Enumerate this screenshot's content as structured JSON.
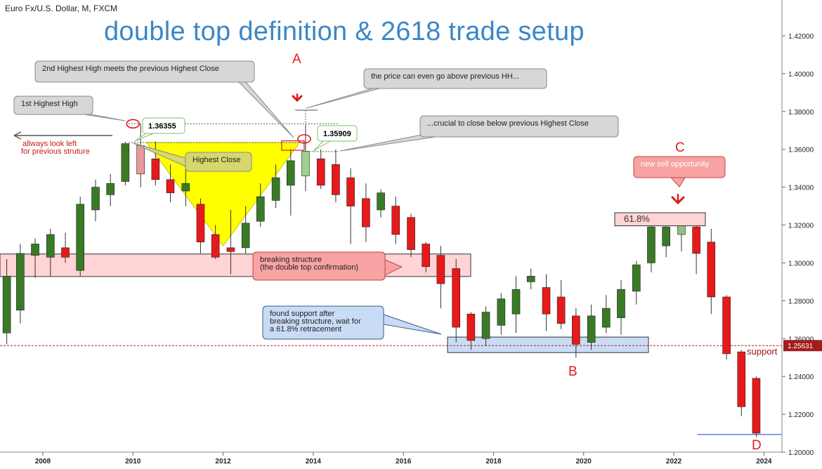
{
  "header": {
    "symbol": "Euro Fx/U.S. Dollar, M, FXCM",
    "title": "double top definition & 2618 trade setup"
  },
  "colors": {
    "bull": "#3a7a27",
    "bear": "#e8191a",
    "wick": "#333333",
    "title": "#3b87c8",
    "highlight_yellow": "#ffff00",
    "zone_pink": "#ffd4d4",
    "zone_blue": "#c9dcf5",
    "letter_red": "#e8191a",
    "support_line": "#b02020",
    "d_line": "#1c3fd6"
  },
  "chart_data": {
    "type": "candlestick",
    "title": "double top definition & 2618 trade setup",
    "symbol": "Euro Fx/U.S. Dollar, M, FXCM",
    "ylim": [
      1.2,
      1.43
    ],
    "xlim": [
      2007.05,
      2024.4
    ],
    "y_ticks": [
      "1.20000",
      "1.22000",
      "1.24000",
      "1.26000",
      "1.28000",
      "1.30000",
      "1.32000",
      "1.34000",
      "1.36000",
      "1.38000",
      "1.40000",
      "1.42000"
    ],
    "x_ticks": [
      "2008",
      "2010",
      "2012",
      "2014",
      "2016",
      "2018",
      "2020",
      "2022",
      "2024"
    ],
    "candles": [
      {
        "t": 2007.2,
        "o": 1.263,
        "h": 1.302,
        "l": 1.257,
        "c": 1.293
      },
      {
        "t": 2007.5,
        "o": 1.275,
        "h": 1.31,
        "l": 1.268,
        "c": 1.305
      },
      {
        "t": 2007.83,
        "o": 1.304,
        "h": 1.313,
        "l": 1.292,
        "c": 1.31
      },
      {
        "t": 2008.17,
        "o": 1.303,
        "h": 1.318,
        "l": 1.293,
        "c": 1.315
      },
      {
        "t": 2008.5,
        "o": 1.308,
        "h": 1.316,
        "l": 1.3,
        "c": 1.303
      },
      {
        "t": 2008.83,
        "o": 1.296,
        "h": 1.335,
        "l": 1.293,
        "c": 1.331
      },
      {
        "t": 2009.17,
        "o": 1.328,
        "h": 1.344,
        "l": 1.322,
        "c": 1.34
      },
      {
        "t": 2009.5,
        "o": 1.336,
        "h": 1.347,
        "l": 1.33,
        "c": 1.342
      },
      {
        "t": 2009.83,
        "o": 1.343,
        "h": 1.364,
        "l": 1.341,
        "c": 1.363
      },
      {
        "t": 2010.17,
        "o": 1.362,
        "h": 1.3735,
        "l": 1.34,
        "c": 1.347
      },
      {
        "t": 2010.5,
        "o": 1.355,
        "h": 1.364,
        "l": 1.341,
        "c": 1.344
      },
      {
        "t": 2010.83,
        "o": 1.344,
        "h": 1.352,
        "l": 1.332,
        "c": 1.337
      },
      {
        "t": 2011.17,
        "o": 1.338,
        "h": 1.351,
        "l": 1.33,
        "c": 1.342
      },
      {
        "t": 2011.5,
        "o": 1.331,
        "h": 1.334,
        "l": 1.305,
        "c": 1.311
      },
      {
        "t": 2011.83,
        "o": 1.315,
        "h": 1.32,
        "l": 1.302,
        "c": 1.303
      },
      {
        "t": 2012.17,
        "o": 1.308,
        "h": 1.328,
        "l": 1.294,
        "c": 1.306
      },
      {
        "t": 2012.5,
        "o": 1.308,
        "h": 1.33,
        "l": 1.305,
        "c": 1.321
      },
      {
        "t": 2012.83,
        "o": 1.322,
        "h": 1.342,
        "l": 1.319,
        "c": 1.335
      },
      {
        "t": 2013.17,
        "o": 1.333,
        "h": 1.352,
        "l": 1.329,
        "c": 1.345
      },
      {
        "t": 2013.5,
        "o": 1.341,
        "h": 1.36,
        "l": 1.325,
        "c": 1.354
      },
      {
        "t": 2013.83,
        "o": 1.346,
        "h": 1.3726,
        "l": 1.338,
        "c": 1.359
      },
      {
        "t": 2014.17,
        "o": 1.355,
        "h": 1.36,
        "l": 1.339,
        "c": 1.341
      },
      {
        "t": 2014.5,
        "o": 1.352,
        "h": 1.36,
        "l": 1.332,
        "c": 1.336
      },
      {
        "t": 2014.83,
        "o": 1.345,
        "h": 1.35,
        "l": 1.31,
        "c": 1.33
      },
      {
        "t": 2015.17,
        "o": 1.334,
        "h": 1.342,
        "l": 1.311,
        "c": 1.319
      },
      {
        "t": 2015.5,
        "o": 1.328,
        "h": 1.339,
        "l": 1.324,
        "c": 1.337
      },
      {
        "t": 2015.83,
        "o": 1.33,
        "h": 1.335,
        "l": 1.31,
        "c": 1.315
      },
      {
        "t": 2016.17,
        "o": 1.324,
        "h": 1.326,
        "l": 1.303,
        "c": 1.307
      },
      {
        "t": 2016.5,
        "o": 1.31,
        "h": 1.311,
        "l": 1.295,
        "c": 1.298
      },
      {
        "t": 2016.83,
        "o": 1.304,
        "h": 1.309,
        "l": 1.276,
        "c": 1.289
      },
      {
        "t": 2017.17,
        "o": 1.297,
        "h": 1.302,
        "l": 1.258,
        "c": 1.266
      },
      {
        "t": 2017.5,
        "o": 1.273,
        "h": 1.274,
        "l": 1.254,
        "c": 1.259
      },
      {
        "t": 2017.83,
        "o": 1.26,
        "h": 1.277,
        "l": 1.256,
        "c": 1.274
      },
      {
        "t": 2018.17,
        "o": 1.267,
        "h": 1.284,
        "l": 1.262,
        "c": 1.281
      },
      {
        "t": 2018.5,
        "o": 1.273,
        "h": 1.293,
        "l": 1.263,
        "c": 1.286
      },
      {
        "t": 2018.83,
        "o": 1.29,
        "h": 1.297,
        "l": 1.286,
        "c": 1.293
      },
      {
        "t": 2019.17,
        "o": 1.287,
        "h": 1.294,
        "l": 1.264,
        "c": 1.273
      },
      {
        "t": 2019.5,
        "o": 1.282,
        "h": 1.291,
        "l": 1.265,
        "c": 1.268
      },
      {
        "t": 2019.83,
        "o": 1.272,
        "h": 1.276,
        "l": 1.25,
        "c": 1.257
      },
      {
        "t": 2020.17,
        "o": 1.258,
        "h": 1.278,
        "l": 1.254,
        "c": 1.272
      },
      {
        "t": 2020.5,
        "o": 1.266,
        "h": 1.283,
        "l": 1.263,
        "c": 1.276
      },
      {
        "t": 2020.83,
        "o": 1.271,
        "h": 1.291,
        "l": 1.262,
        "c": 1.286
      },
      {
        "t": 2021.17,
        "o": 1.285,
        "h": 1.301,
        "l": 1.278,
        "c": 1.299
      },
      {
        "t": 2021.5,
        "o": 1.3,
        "h": 1.321,
        "l": 1.295,
        "c": 1.319
      },
      {
        "t": 2021.83,
        "o": 1.309,
        "h": 1.325,
        "l": 1.303,
        "c": 1.319
      },
      {
        "t": 2022.17,
        "o": 1.315,
        "h": 1.3265,
        "l": 1.306,
        "c": 1.3225
      },
      {
        "t": 2022.5,
        "o": 1.319,
        "h": 1.325,
        "l": 1.294,
        "c": 1.305
      },
      {
        "t": 2022.83,
        "o": 1.311,
        "h": 1.318,
        "l": 1.273,
        "c": 1.282
      },
      {
        "t": 2023.17,
        "o": 1.282,
        "h": 1.283,
        "l": 1.249,
        "c": 1.252
      },
      {
        "t": 2023.5,
        "o": 1.253,
        "h": 1.254,
        "l": 1.219,
        "c": 1.224
      },
      {
        "t": 2023.83,
        "o": 1.239,
        "h": 1.24,
        "l": 1.208,
        "c": 1.21
      }
    ],
    "levels": {
      "previous_highest_close": 1.3636,
      "higher_high_marker": 1.3807,
      "support": 1.2563,
      "first_hh_dotted": 1.3735,
      "d_line": 1.2093
    },
    "price_badge": "1.25631",
    "labels": {
      "first_hh_price": "1.36355",
      "second_high_price": "1.35909",
      "fib_level": "61.8%",
      "support_label": "support",
      "point_a": "A",
      "point_b": "B",
      "point_c": "C",
      "point_d": "D"
    },
    "callouts": {
      "first_hh": "1st Highest High",
      "second_hh": "2nd Highest High meets the previous Highest Close",
      "above_hh": "the price can even go above previous HH...",
      "crucial_close": "...crucial to close below previous Highest Close",
      "highest_close": "Highest Close",
      "look_left_line1": "allways look left",
      "look_left_line2": "for previous struture",
      "breaking_line1": "breaking structure",
      "breaking_line2": "(the double top confirmation)",
      "support_line1": "found support after",
      "support_line2": "breaking structure, wait for",
      "support_line3": "a 61.8% retracement",
      "sell": "new sell opportunity"
    }
  }
}
